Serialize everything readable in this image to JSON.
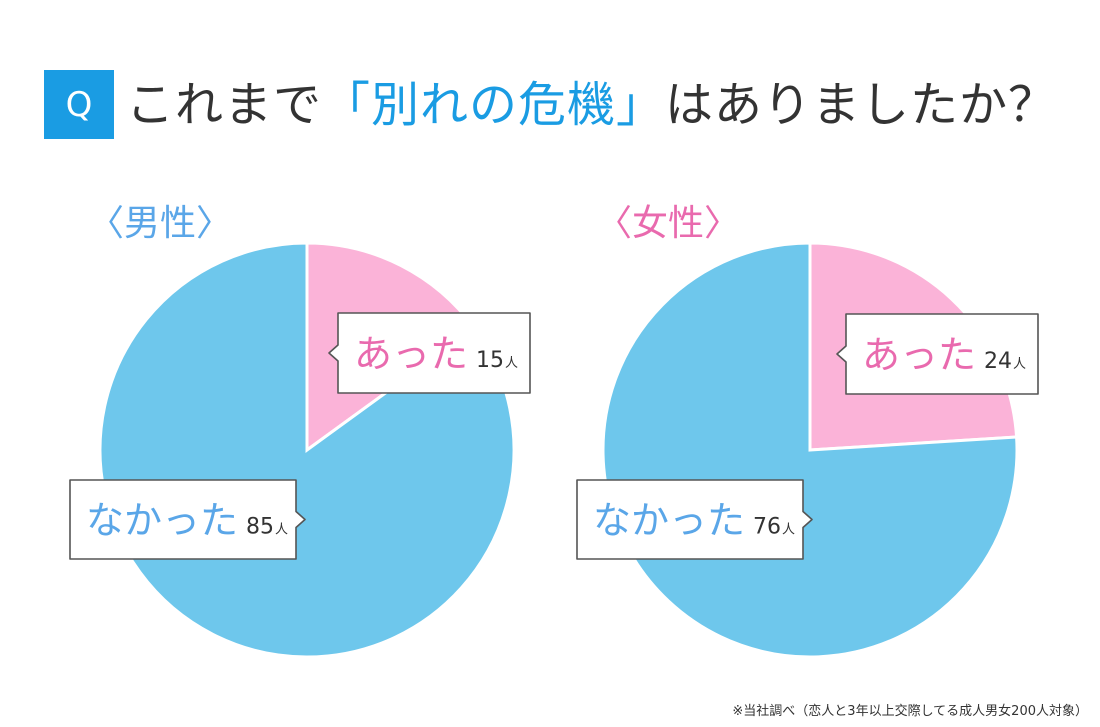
{
  "header": {
    "badge": "Q",
    "question_before": "これまで",
    "question_accent": "「別れの危機」",
    "question_after": "はありましたか？"
  },
  "colors": {
    "accent": "#1a9ce3",
    "male_label": "#5aa6e8",
    "female_label": "#e96aae",
    "slice_yes": "#fbb3d8",
    "slice_no": "#6ec7ec",
    "text_yes": "#e96aae",
    "text_no": "#5aa6e8"
  },
  "footnote": "※当社調べ（恋人と3年以上交際してる成人男女200人対象）",
  "chart_data": [
    {
      "type": "pie",
      "title": "〈男性〉",
      "unit": "人",
      "slices": [
        {
          "label": "あった",
          "value": 15
        },
        {
          "label": "なかった",
          "value": 85
        }
      ]
    },
    {
      "type": "pie",
      "title": "〈女性〉",
      "unit": "人",
      "slices": [
        {
          "label": "あった",
          "value": 24
        },
        {
          "label": "なかった",
          "value": 76
        }
      ]
    }
  ]
}
